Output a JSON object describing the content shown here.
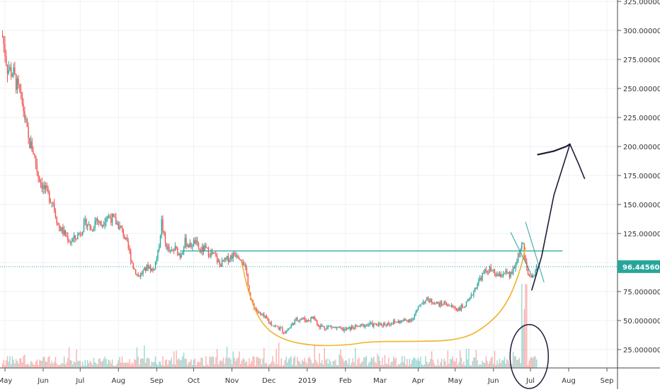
{
  "chart_data": {
    "type": "candlestick",
    "title": "",
    "xlabel": "",
    "ylabel": "",
    "ylim": [
      0,
      325
    ],
    "yticks": [
      25,
      50,
      75,
      100,
      125,
      150,
      175,
      200,
      225,
      250,
      275,
      300,
      325
    ],
    "ytick_labels": [
      "25.00000000",
      "50.00000000",
      "75.00000000",
      "",
      "125.00000000",
      "150.00000000",
      "175.00000000",
      "200.00000000",
      "225.00000000",
      "250.00000000",
      "275.00000000",
      "300.00000000",
      "325.00000000"
    ],
    "xticks": [
      {
        "label": "May",
        "date": "2018-05-01"
      },
      {
        "label": "Jun",
        "date": "2018-06-01"
      },
      {
        "label": "Jul",
        "date": "2018-07-01"
      },
      {
        "label": "Aug",
        "date": "2018-08-01"
      },
      {
        "label": "Sep",
        "date": "2018-09-01"
      },
      {
        "label": "Oct",
        "date": "2018-10-01"
      },
      {
        "label": "Nov",
        "date": "2018-11-01"
      },
      {
        "label": "Dec",
        "date": "2018-12-01"
      },
      {
        "label": "2019",
        "date": "2019-01-01"
      },
      {
        "label": "Feb",
        "date": "2019-02-01"
      },
      {
        "label": "Mar",
        "date": "2019-03-01"
      },
      {
        "label": "Apr",
        "date": "2019-04-01"
      },
      {
        "label": "May",
        "date": "2019-05-01"
      },
      {
        "label": "Jun",
        "date": "2019-06-01"
      },
      {
        "label": "Jul",
        "date": "2019-07-01"
      },
      {
        "label": "Aug",
        "date": "2019-08-01"
      },
      {
        "label": "Sep",
        "date": "2019-09-01"
      }
    ],
    "grid": true,
    "last_price": {
      "value": 96.4456031,
      "label": "96.44560310"
    },
    "price_path": [
      [
        "2018-04-29",
        295
      ],
      [
        "2018-05-03",
        268
      ],
      [
        "2018-05-08",
        262
      ],
      [
        "2018-05-12",
        248
      ],
      [
        "2018-05-16",
        232
      ],
      [
        "2018-05-20",
        205
      ],
      [
        "2018-05-24",
        196
      ],
      [
        "2018-05-28",
        175
      ],
      [
        "2018-06-01",
        165
      ],
      [
        "2018-06-05",
        158
      ],
      [
        "2018-06-09",
        152
      ],
      [
        "2018-06-13",
        132
      ],
      [
        "2018-06-18",
        125
      ],
      [
        "2018-06-23",
        118
      ],
      [
        "2018-06-28",
        122
      ],
      [
        "2018-07-02",
        128
      ],
      [
        "2018-07-06",
        135
      ],
      [
        "2018-07-10",
        128
      ],
      [
        "2018-07-14",
        138
      ],
      [
        "2018-07-18",
        132
      ],
      [
        "2018-07-22",
        140
      ],
      [
        "2018-07-27",
        138
      ],
      [
        "2018-08-01",
        132
      ],
      [
        "2018-08-05",
        125
      ],
      [
        "2018-08-09",
        112
      ],
      [
        "2018-08-13",
        96
      ],
      [
        "2018-08-17",
        88
      ],
      [
        "2018-08-21",
        92
      ],
      [
        "2018-08-25",
        97
      ],
      [
        "2018-08-29",
        93
      ],
      [
        "2018-09-02",
        108
      ],
      [
        "2018-09-05",
        135
      ],
      [
        "2018-09-08",
        116
      ],
      [
        "2018-09-12",
        108
      ],
      [
        "2018-09-16",
        112
      ],
      [
        "2018-09-20",
        106
      ],
      [
        "2018-09-24",
        118
      ],
      [
        "2018-09-28",
        114
      ],
      [
        "2018-10-02",
        118
      ],
      [
        "2018-10-06",
        110
      ],
      [
        "2018-10-10",
        112
      ],
      [
        "2018-10-14",
        108
      ],
      [
        "2018-10-18",
        106
      ],
      [
        "2018-10-22",
        98
      ],
      [
        "2018-10-27",
        102
      ],
      [
        "2018-11-01",
        106
      ],
      [
        "2018-11-05",
        108
      ],
      [
        "2018-11-09",
        103
      ],
      [
        "2018-11-13",
        90
      ],
      [
        "2018-11-16",
        68
      ],
      [
        "2018-11-20",
        60
      ],
      [
        "2018-11-24",
        55
      ],
      [
        "2018-11-28",
        52
      ],
      [
        "2018-12-02",
        48
      ],
      [
        "2018-12-06",
        45
      ],
      [
        "2018-12-10",
        43
      ],
      [
        "2018-12-14",
        40
      ],
      [
        "2018-12-18",
        44
      ],
      [
        "2018-12-22",
        50
      ],
      [
        "2018-12-27",
        52
      ],
      [
        "2019-01-01",
        50
      ],
      [
        "2019-01-06",
        53
      ],
      [
        "2019-01-10",
        46
      ],
      [
        "2019-01-15",
        44
      ],
      [
        "2019-01-20",
        45
      ],
      [
        "2019-01-25",
        43
      ],
      [
        "2019-02-01",
        42
      ],
      [
        "2019-02-07",
        44
      ],
      [
        "2019-02-13",
        45
      ],
      [
        "2019-02-20",
        47
      ],
      [
        "2019-02-26",
        46
      ],
      [
        "2019-03-04",
        47
      ],
      [
        "2019-03-10",
        48
      ],
      [
        "2019-03-16",
        49
      ],
      [
        "2019-03-22",
        50
      ],
      [
        "2019-03-28",
        52
      ],
      [
        "2019-04-03",
        65
      ],
      [
        "2019-04-08",
        68
      ],
      [
        "2019-04-13",
        66
      ],
      [
        "2019-04-18",
        64
      ],
      [
        "2019-04-23",
        65
      ],
      [
        "2019-04-28",
        62
      ],
      [
        "2019-05-03",
        60
      ],
      [
        "2019-05-08",
        62
      ],
      [
        "2019-05-13",
        68
      ],
      [
        "2019-05-17",
        78
      ],
      [
        "2019-05-21",
        86
      ],
      [
        "2019-05-25",
        92
      ],
      [
        "2019-05-29",
        94
      ],
      [
        "2019-06-02",
        90
      ],
      [
        "2019-06-06",
        88
      ],
      [
        "2019-06-10",
        92
      ],
      [
        "2019-06-14",
        88
      ],
      [
        "2019-06-18",
        95
      ],
      [
        "2019-06-22",
        110
      ],
      [
        "2019-06-25",
        115
      ],
      [
        "2019-06-27",
        102
      ],
      [
        "2019-06-29",
        90
      ],
      [
        "2019-07-01",
        86
      ],
      [
        "2019-07-03",
        88
      ],
      [
        "2019-07-06",
        96.45
      ]
    ],
    "annotations": {
      "horizontal_line": {
        "y": 110,
        "x_start": "2018-09-20",
        "x_end": "2019-07-27"
      },
      "cup_curve": [
        [
          "2018-11-09",
          100
        ],
        [
          "2018-11-14",
          75
        ],
        [
          "2018-11-24",
          48
        ],
        [
          "2018-12-10",
          34
        ],
        [
          "2019-01-05",
          28
        ],
        [
          "2019-02-05",
          29
        ],
        [
          "2019-02-20",
          32
        ],
        [
          "2019-04-05",
          32
        ],
        [
          "2019-05-01",
          33
        ],
        [
          "2019-05-20",
          40
        ],
        [
          "2019-06-10",
          60
        ],
        [
          "2019-06-22",
          90
        ],
        [
          "2019-06-27",
          113
        ]
      ],
      "handle_lines": [
        [
          [
            "2019-06-15",
            126
          ],
          [
            "2019-07-03",
            87
          ]
        ],
        [
          [
            "2019-06-27",
            135
          ],
          [
            "2019-07-12",
            83
          ]
        ]
      ],
      "projection_path": [
        [
          "2019-07-02",
          76
        ],
        [
          "2019-07-10",
          105
        ],
        [
          "2019-07-20",
          158
        ],
        [
          "2019-08-02",
          202
        ],
        [
          "2019-08-09",
          185
        ],
        [
          "2019-08-14",
          172
        ]
      ],
      "target_line": [
        [
          "2019-07-07",
          193
        ],
        [
          "2019-07-20",
          196
        ],
        [
          "2019-07-30",
          200
        ],
        [
          "2019-08-02",
          202
        ]
      ],
      "volume_circle": {
        "center": [
          "2019-06-30",
          19
        ],
        "rx_days": 10,
        "ry": 19
      }
    },
    "colors": {
      "up": "#26a69a",
      "down": "#ef5350",
      "horizontal_line": "#26a69a",
      "cup": "#f0b429",
      "projection": "#1f1b3a",
      "handle_lines": "#26a69a",
      "last_price_bg": "#26a69a",
      "grid": "#eef1f4"
    }
  }
}
